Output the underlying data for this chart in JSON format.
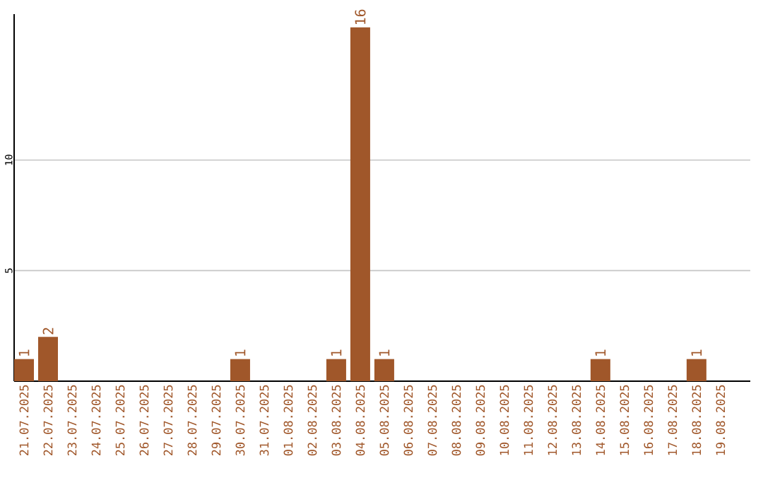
{
  "chart_data": {
    "type": "bar",
    "categories": [
      "21.07.2025",
      "22.07.2025",
      "23.07.2025",
      "24.07.2025",
      "25.07.2025",
      "26.07.2025",
      "27.07.2025",
      "28.07.2025",
      "29.07.2025",
      "30.07.2025",
      "31.07.2025",
      "01.08.2025",
      "02.08.2025",
      "03.08.2025",
      "04.08.2025",
      "05.08.2025",
      "06.08.2025",
      "07.08.2025",
      "08.08.2025",
      "09.08.2025",
      "10.08.2025",
      "11.08.2025",
      "12.08.2025",
      "13.08.2025",
      "14.08.2025",
      "15.08.2025",
      "16.08.2025",
      "17.08.2025",
      "18.08.2025",
      "19.08.2025"
    ],
    "values": [
      1,
      2,
      0,
      0,
      0,
      0,
      0,
      0,
      0,
      1,
      0,
      0,
      0,
      1,
      16,
      1,
      0,
      0,
      0,
      0,
      0,
      0,
      0,
      0,
      1,
      0,
      0,
      0,
      1,
      0
    ],
    "value_labels": [
      "1",
      "2",
      null,
      null,
      null,
      null,
      null,
      null,
      null,
      "1",
      null,
      null,
      null,
      "1",
      "16",
      "1",
      null,
      null,
      null,
      null,
      null,
      null,
      null,
      null,
      "1",
      null,
      null,
      null,
      "1",
      null
    ],
    "color": "#a0572a",
    "ylim": [
      0,
      16.6
    ],
    "yticks": [
      5,
      10
    ],
    "grid": "y"
  }
}
